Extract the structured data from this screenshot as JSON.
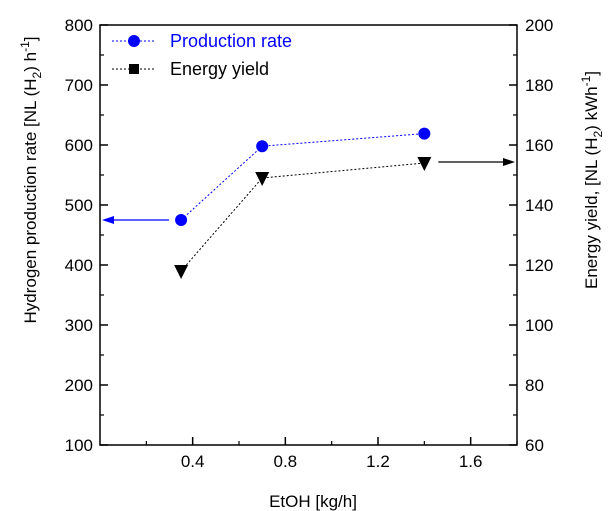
{
  "chart_data": {
    "type": "line",
    "xlabel": "EtOH [kg/h]",
    "ylabel": {
      "text": "Hydrogen production rate [NL (H",
      "sub": "2",
      "mid": ") h",
      "sup": "-1",
      "end": "]"
    },
    "y2label": {
      "text": "Energy yield, [NL (H",
      "sub": "2",
      "mid": ") kWh",
      "sup": "-1",
      "end": "]"
    },
    "xlim": [
      0,
      1.8
    ],
    "ylim": [
      100,
      800
    ],
    "y2lim": [
      60,
      200
    ],
    "xticks": [
      0.4,
      0.8,
      1.2,
      1.6
    ],
    "xtick_labels": [
      "0.4",
      "0.8",
      "1.2",
      "1.6"
    ],
    "yticks": [
      100,
      200,
      300,
      400,
      500,
      600,
      700,
      800
    ],
    "ytick_labels": [
      "100",
      "200",
      "300",
      "400",
      "500",
      "600",
      "700",
      "800"
    ],
    "y2ticks": [
      60,
      80,
      100,
      120,
      140,
      160,
      180,
      200
    ],
    "y2tick_labels": [
      "60",
      "80",
      "100",
      "120",
      "140",
      "160",
      "180",
      "200"
    ],
    "x": [
      0.35,
      0.7,
      1.4
    ],
    "series": [
      {
        "name": "Production rate",
        "axis": "left",
        "marker": "circle",
        "color": "#0000ff",
        "values": [
          475,
          598,
          619
        ]
      },
      {
        "name": "Energy yield",
        "axis": "right",
        "marker": "triangle-down",
        "color": "#000000",
        "values": [
          118,
          149,
          154
        ]
      }
    ],
    "legend": {
      "placement": "top-left"
    },
    "annotations": [
      {
        "kind": "arrow",
        "direction": "left",
        "points_to_axis": "left",
        "color": "#0000ff"
      },
      {
        "kind": "arrow",
        "direction": "right",
        "points_to_axis": "right",
        "color": "#000000"
      }
    ],
    "grid": false
  }
}
